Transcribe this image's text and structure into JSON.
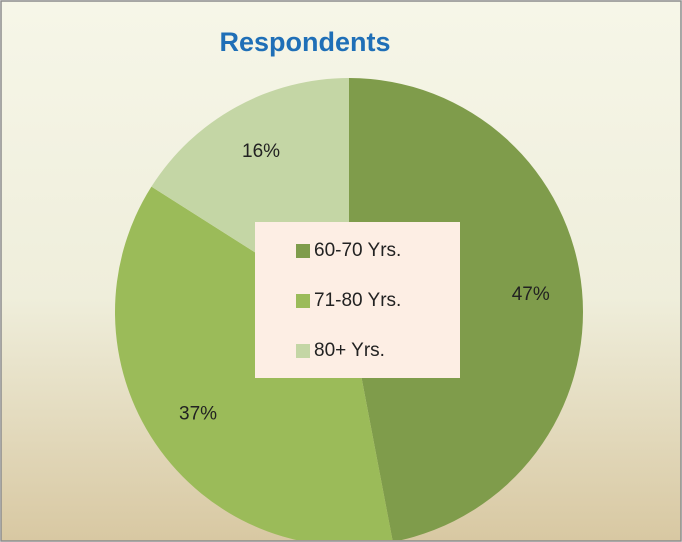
{
  "chart_data": {
    "type": "pie",
    "title": "Respondents",
    "categories": [
      "60-70 Yrs.",
      "71-80 Yrs.",
      "80+ Yrs."
    ],
    "values": [
      47,
      37,
      16
    ],
    "value_labels": [
      "47%",
      "37%",
      "16%"
    ],
    "colors": [
      "#7f9c4b",
      "#9bbb59",
      "#c4d6a5"
    ],
    "legend": "center"
  }
}
